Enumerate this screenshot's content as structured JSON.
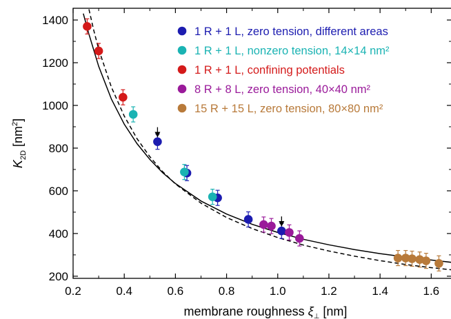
{
  "chart_data": {
    "type": "scatter",
    "xlabel": "membrane roughness ξ⊥ [nm]",
    "ylabel": "K2D [nm²]",
    "xlim": [
      0.2,
      1.68
    ],
    "ylim": [
      190,
      1455
    ],
    "x_ticks": [
      "0.2",
      "0.4",
      "0.6",
      "0.8",
      "1.0",
      "1.2",
      "1.4",
      "1.6"
    ],
    "y_ticks": [
      "200",
      "400",
      "600",
      "800",
      "1000",
      "1200",
      "1400"
    ],
    "legend_position": "top-right",
    "series": [
      {
        "name": "1 R + 1 L, zero tension, different areas",
        "color": "#1c1cb0",
        "points": [
          [
            0.53,
            830
          ],
          [
            0.645,
            683
          ],
          [
            0.765,
            567
          ],
          [
            0.885,
            466
          ],
          [
            1.015,
            412
          ]
        ]
      },
      {
        "name": "1 R + 1 L, nonzero tension, 14×14 nm²",
        "color": "#1ab3b3",
        "points": [
          [
            0.435,
            958
          ],
          [
            0.635,
            688
          ],
          [
            0.745,
            572
          ]
        ]
      },
      {
        "name": "1 R + 1 L, confining potentials",
        "color": "#d41a1a",
        "points": [
          [
            0.255,
            1370
          ],
          [
            0.3,
            1255
          ],
          [
            0.395,
            1038
          ]
        ]
      },
      {
        "name": "8 R + 8 L, zero tension, 40×40 nm²",
        "color": "#9a1a9a",
        "points": [
          [
            0.945,
            442
          ],
          [
            0.975,
            435
          ],
          [
            1.045,
            405
          ],
          [
            1.085,
            377
          ]
        ]
      },
      {
        "name": "15 R + 15 L, zero tension, 80×80 nm²",
        "color": "#b87a3a",
        "points": [
          [
            1.47,
            285
          ],
          [
            1.5,
            285
          ],
          [
            1.525,
            282
          ],
          [
            1.555,
            278
          ],
          [
            1.58,
            272
          ],
          [
            1.63,
            260
          ]
        ]
      }
    ],
    "fit_curves": [
      {
        "style": "solid",
        "x": [
          0.24,
          0.26,
          0.3,
          0.35,
          0.4,
          0.45,
          0.5,
          0.55,
          0.6,
          0.7,
          0.8,
          0.9,
          1.0,
          1.1,
          1.2,
          1.3,
          1.4,
          1.5,
          1.6,
          1.68
        ],
        "y": [
          1430,
          1341,
          1183,
          1029,
          912,
          821,
          747,
          685,
          634,
          552,
          491,
          443,
          405,
          373,
          347,
          325,
          306,
          290,
          276,
          265
        ]
      },
      {
        "style": "dashed",
        "x": [
          0.262,
          0.28,
          0.3,
          0.35,
          0.4,
          0.45,
          0.5,
          0.55,
          0.6,
          0.7,
          0.8,
          0.9,
          1.0,
          1.1,
          1.2,
          1.3,
          1.4,
          1.5,
          1.6,
          1.68
        ],
        "y": [
          1450,
          1355,
          1263,
          1085,
          950,
          844,
          760,
          690,
          632,
          542,
          475,
          423,
          381,
          346,
          318,
          294,
          273,
          255,
          240,
          230
        ]
      }
    ],
    "annotations": [
      {
        "type": "arrow",
        "x": 0.53,
        "y_from": 898,
        "y_to": 850
      },
      {
        "type": "arrow",
        "x": 1.015,
        "y_from": 480,
        "y_to": 432
      }
    ]
  }
}
